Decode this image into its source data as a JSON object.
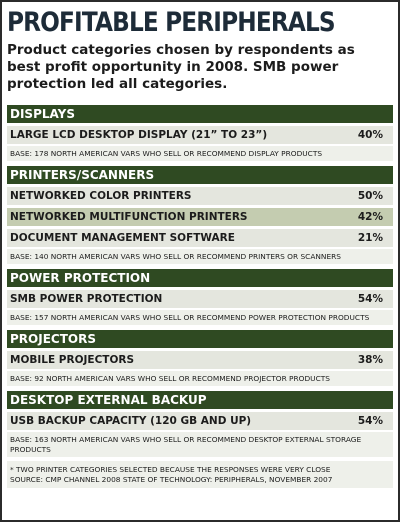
{
  "header": {
    "title": "PROFITABLE PERIPHERALS",
    "subtitle": "Product categories chosen by respondents as best profit opportunity in 2008. SMB power protection led all categories."
  },
  "sections": [
    {
      "title": "DISPLAYS",
      "rows": [
        {
          "label": "LARGE LCD DESKTOP DISPLAY (21” TO 23”)",
          "value": "40%"
        }
      ],
      "base": "BASE: 178 NORTH AMERICAN VARS WHO SELL OR RECOMMEND DISPLAY PRODUCTS"
    },
    {
      "title": "PRINTERS/SCANNERS",
      "rows": [
        {
          "label": "NETWORKED COLOR PRINTERS",
          "value": "50%"
        },
        {
          "label": "NETWORKED MULTIFUNCTION PRINTERS",
          "value": "42%",
          "highlight": true
        },
        {
          "label": "DOCUMENT MANAGEMENT SOFTWARE",
          "value": "21%"
        }
      ],
      "base": "BASE: 140 NORTH AMERICAN VARS WHO SELL OR RECOMMEND PRINTERS OR SCANNERS"
    },
    {
      "title": "POWER PROTECTION",
      "rows": [
        {
          "label": "SMB POWER PROTECTION",
          "value": "54%"
        }
      ],
      "base": "BASE: 157 NORTH AMERICAN VARS WHO SELL OR RECOMMEND POWER PROTECTION PRODUCTS"
    },
    {
      "title": "PROJECTORS",
      "rows": [
        {
          "label": "MOBILE PROJECTORS",
          "value": "38%"
        }
      ],
      "base": "BASE: 92 NORTH AMERICAN VARS WHO SELL OR RECOMMEND PROJECTOR PRODUCTS"
    },
    {
      "title": "DESKTOP EXTERNAL BACKUP",
      "rows": [
        {
          "label": "USB BACKUP CAPACITY (120 GB AND UP)",
          "value": "54%"
        }
      ],
      "base": "BASE: 163 NORTH AMERICAN VARS WHO SELL OR RECOMMEND DESKTOP EXTERNAL STORAGE PRODUCTS"
    }
  ],
  "footnotes": [
    "* TWO PRINTER CATEGORIES SELECTED BECAUSE THE RESPONSES WERE VERY CLOSE",
    "SOURCE: CMP CHANNEL 2008 STATE OF TECHNOLOGY: PERIPHERALS, NOVEMBER 2007"
  ]
}
